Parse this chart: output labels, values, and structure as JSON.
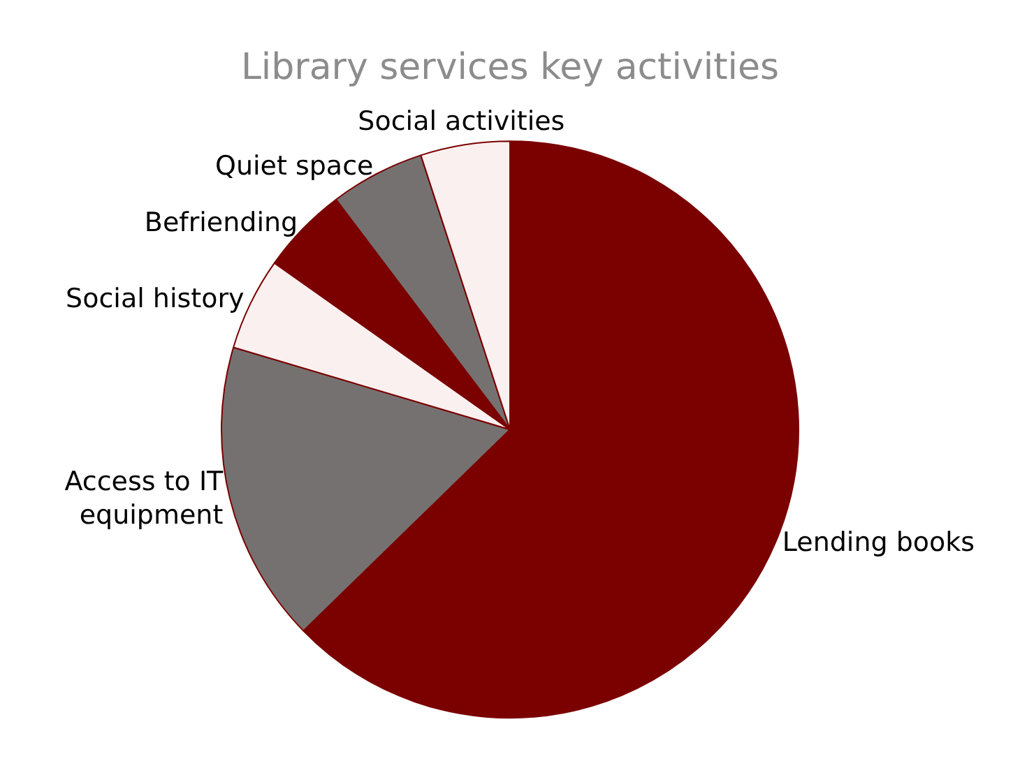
{
  "chart_data": {
    "type": "pie",
    "title": "Library services key activities",
    "categories": [
      "Lending books",
      "Access to IT equipment",
      "Social history",
      "Befriending",
      "Quiet space",
      "Social activities"
    ],
    "values": [
      62.7,
      16.9,
      5.2,
      4.9,
      5.3,
      5.0
    ],
    "colors": [
      "#7b0000",
      "#767171",
      "#fbf0f0",
      "#7b0000",
      "#767171",
      "#fbf0f0"
    ]
  }
}
